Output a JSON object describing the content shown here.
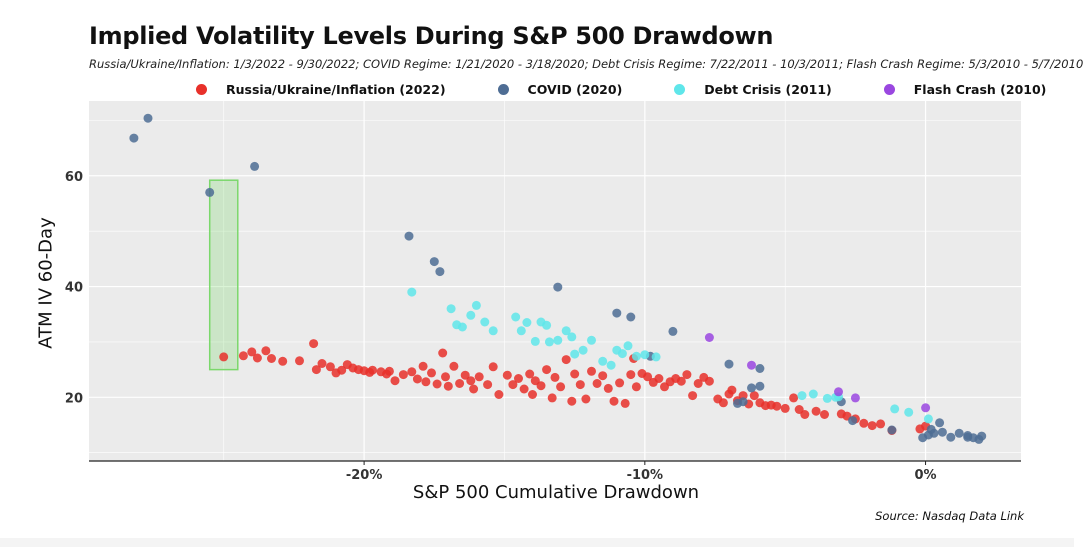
{
  "chart_data": {
    "type": "scatter",
    "title": "Implied Volatility Levels During S&P 500 Drawdown",
    "subtitle": "Russia/Ukraine/Inflation: 1/3/2022 - 9/30/2022; COVID Regime: 1/21/2020 - 3/18/2020; Debt Crisis Regime: 7/22/2011 - 10/3/2011; Flash Crash Regime: 5/3/2010 - 5/7/2010",
    "xlabel": "S&P 500 Cumulative Drawdown",
    "ylabel": "ATM IV 60-Day",
    "source": "Source: Nasdaq Data Link",
    "xlim": [
      -29.8,
      3.4
    ],
    "ylim": [
      8.5,
      73.5
    ],
    "grid": true,
    "legend_position": "top",
    "x_ticks": [
      {
        "value": -20,
        "label": "-20%"
      },
      {
        "value": -10,
        "label": "-10%"
      },
      {
        "value": 0,
        "label": "0%"
      }
    ],
    "y_ticks": [
      {
        "value": 20,
        "label": "20"
      },
      {
        "value": 40,
        "label": "40"
      },
      {
        "value": 60,
        "label": "60"
      }
    ],
    "highlight": {
      "x": [
        -25.5,
        -24.5
      ],
      "y": [
        25,
        59.2
      ],
      "color": "#7bd86b"
    },
    "series": [
      {
        "name": "Russia/Ukraine/Inflation (2022)",
        "color": "#e8302a",
        "points": [
          [
            -25.0,
            27.3
          ],
          [
            -24.3,
            27.5
          ],
          [
            -24.0,
            28.2
          ],
          [
            -23.8,
            27.1
          ],
          [
            -23.5,
            28.4
          ],
          [
            -23.3,
            27.0
          ],
          [
            -22.9,
            26.5
          ],
          [
            -22.3,
            26.6
          ],
          [
            -21.8,
            29.7
          ],
          [
            -21.7,
            25.0
          ],
          [
            -21.5,
            26.1
          ],
          [
            -21.2,
            25.5
          ],
          [
            -21.0,
            24.4
          ],
          [
            -20.8,
            24.9
          ],
          [
            -20.6,
            25.9
          ],
          [
            -20.4,
            25.3
          ],
          [
            -20.2,
            25.0
          ],
          [
            -20.0,
            24.8
          ],
          [
            -19.8,
            24.5
          ],
          [
            -19.7,
            24.9
          ],
          [
            -19.4,
            24.6
          ],
          [
            -19.2,
            24.2
          ],
          [
            -19.1,
            24.7
          ],
          [
            -18.9,
            23.0
          ],
          [
            -18.6,
            24.1
          ],
          [
            -18.3,
            24.6
          ],
          [
            -18.1,
            23.3
          ],
          [
            -17.9,
            25.6
          ],
          [
            -17.8,
            22.8
          ],
          [
            -17.6,
            24.4
          ],
          [
            -17.4,
            22.4
          ],
          [
            -17.2,
            28.0
          ],
          [
            -17.1,
            23.7
          ],
          [
            -17.0,
            22.0
          ],
          [
            -16.8,
            25.6
          ],
          [
            -16.6,
            22.5
          ],
          [
            -16.4,
            24.0
          ],
          [
            -16.2,
            23.0
          ],
          [
            -16.1,
            21.5
          ],
          [
            -15.9,
            23.7
          ],
          [
            -15.6,
            22.3
          ],
          [
            -15.4,
            25.5
          ],
          [
            -15.2,
            20.5
          ],
          [
            -14.9,
            24.0
          ],
          [
            -14.7,
            22.3
          ],
          [
            -14.5,
            23.4
          ],
          [
            -14.3,
            21.5
          ],
          [
            -14.1,
            24.2
          ],
          [
            -14.0,
            20.5
          ],
          [
            -13.9,
            23.0
          ],
          [
            -13.7,
            22.1
          ],
          [
            -13.5,
            25.0
          ],
          [
            -13.3,
            19.9
          ],
          [
            -13.2,
            23.6
          ],
          [
            -13.0,
            21.9
          ],
          [
            -12.8,
            26.8
          ],
          [
            -12.6,
            19.3
          ],
          [
            -12.5,
            24.2
          ],
          [
            -12.3,
            22.3
          ],
          [
            -12.1,
            19.7
          ],
          [
            -11.9,
            24.7
          ],
          [
            -11.7,
            22.5
          ],
          [
            -11.5,
            23.9
          ],
          [
            -11.3,
            21.6
          ],
          [
            -11.1,
            19.3
          ],
          [
            -10.9,
            22.6
          ],
          [
            -10.7,
            18.9
          ],
          [
            -10.5,
            24.1
          ],
          [
            -10.4,
            27.0
          ],
          [
            -10.3,
            21.9
          ],
          [
            -10.1,
            24.3
          ],
          [
            -9.9,
            23.7
          ],
          [
            -9.7,
            22.7
          ],
          [
            -9.5,
            23.4
          ],
          [
            -9.3,
            21.9
          ],
          [
            -9.1,
            22.8
          ],
          [
            -8.9,
            23.4
          ],
          [
            -8.7,
            22.9
          ],
          [
            -8.5,
            24.1
          ],
          [
            -8.3,
            20.3
          ],
          [
            -8.1,
            22.5
          ],
          [
            -7.9,
            23.6
          ],
          [
            -7.7,
            22.9
          ],
          [
            -7.4,
            19.7
          ],
          [
            -7.2,
            19.0
          ],
          [
            -7.0,
            20.6
          ],
          [
            -6.9,
            21.3
          ],
          [
            -6.7,
            19.4
          ],
          [
            -6.5,
            20.3
          ],
          [
            -6.3,
            18.8
          ],
          [
            -6.1,
            20.3
          ],
          [
            -5.9,
            19.0
          ],
          [
            -5.7,
            18.5
          ],
          [
            -5.5,
            18.6
          ],
          [
            -5.3,
            18.4
          ],
          [
            -5.0,
            18.0
          ],
          [
            -4.7,
            19.9
          ],
          [
            -4.5,
            17.8
          ],
          [
            -4.3,
            16.9
          ],
          [
            -3.9,
            17.5
          ],
          [
            -3.6,
            16.9
          ],
          [
            -3.0,
            17.0
          ],
          [
            -2.8,
            16.6
          ],
          [
            -2.5,
            16.1
          ],
          [
            -2.2,
            15.3
          ],
          [
            -1.9,
            14.9
          ],
          [
            -1.6,
            15.2
          ],
          [
            -1.2,
            14.0
          ],
          [
            -0.2,
            14.3
          ],
          [
            0.0,
            14.8
          ]
        ]
      },
      {
        "name": "COVID (2020)",
        "color": "#4e6d94",
        "points": [
          [
            -28.2,
            66.8
          ],
          [
            -27.7,
            70.4
          ],
          [
            -25.5,
            57.0
          ],
          [
            -23.9,
            61.7
          ],
          [
            -18.4,
            49.1
          ],
          [
            -17.5,
            44.5
          ],
          [
            -17.3,
            42.7
          ],
          [
            -13.1,
            39.9
          ],
          [
            -11.0,
            35.2
          ],
          [
            -10.5,
            34.5
          ],
          [
            -9.8,
            27.4
          ],
          [
            -9.0,
            31.9
          ],
          [
            -7.0,
            26.0
          ],
          [
            -6.7,
            18.9
          ],
          [
            -6.5,
            19.2
          ],
          [
            -6.2,
            21.7
          ],
          [
            -5.9,
            22.0
          ],
          [
            -5.9,
            25.2
          ],
          [
            -3.0,
            19.2
          ],
          [
            -2.6,
            15.8
          ],
          [
            -1.2,
            14.1
          ],
          [
            -0.1,
            12.7
          ],
          [
            0.1,
            13.2
          ],
          [
            0.3,
            13.5
          ],
          [
            0.6,
            13.7
          ],
          [
            0.9,
            12.8
          ],
          [
            1.2,
            13.5
          ],
          [
            1.5,
            13.1
          ],
          [
            1.7,
            12.7
          ],
          [
            1.9,
            12.4
          ],
          [
            2.0,
            13.0
          ],
          [
            0.2,
            14.2
          ],
          [
            0.5,
            15.4
          ],
          [
            1.5,
            12.8
          ]
        ]
      },
      {
        "name": "Debt Crisis (2011)",
        "color": "#5fe6ea",
        "points": [
          [
            -18.3,
            39.0
          ],
          [
            -16.9,
            36.0
          ],
          [
            -16.7,
            33.1
          ],
          [
            -16.5,
            32.7
          ],
          [
            -16.2,
            34.8
          ],
          [
            -16.0,
            36.6
          ],
          [
            -15.7,
            33.6
          ],
          [
            -15.4,
            32.0
          ],
          [
            -14.6,
            34.5
          ],
          [
            -14.4,
            32.0
          ],
          [
            -14.2,
            33.5
          ],
          [
            -13.9,
            30.1
          ],
          [
            -13.7,
            33.6
          ],
          [
            -13.5,
            33.0
          ],
          [
            -13.4,
            30.0
          ],
          [
            -13.1,
            30.3
          ],
          [
            -12.8,
            32.0
          ],
          [
            -12.6,
            30.9
          ],
          [
            -12.5,
            27.8
          ],
          [
            -12.2,
            28.5
          ],
          [
            -11.9,
            30.3
          ],
          [
            -11.5,
            26.5
          ],
          [
            -11.2,
            25.8
          ],
          [
            -11.0,
            28.5
          ],
          [
            -10.8,
            27.9
          ],
          [
            -10.6,
            29.3
          ],
          [
            -10.3,
            27.4
          ],
          [
            -10.0,
            27.7
          ],
          [
            -9.6,
            27.3
          ],
          [
            -4.4,
            20.3
          ],
          [
            -4.0,
            20.6
          ],
          [
            -3.5,
            19.8
          ],
          [
            -3.2,
            20.0
          ],
          [
            -3.1,
            20.1
          ],
          [
            -1.1,
            17.9
          ],
          [
            -0.6,
            17.3
          ],
          [
            0.1,
            16.1
          ]
        ]
      },
      {
        "name": "Flash Crash (2010)",
        "color": "#9a47e0",
        "points": [
          [
            -7.7,
            30.8
          ],
          [
            -6.2,
            25.8
          ],
          [
            -3.1,
            21.0
          ],
          [
            -2.5,
            19.9
          ],
          [
            0.0,
            18.1
          ]
        ]
      }
    ]
  }
}
